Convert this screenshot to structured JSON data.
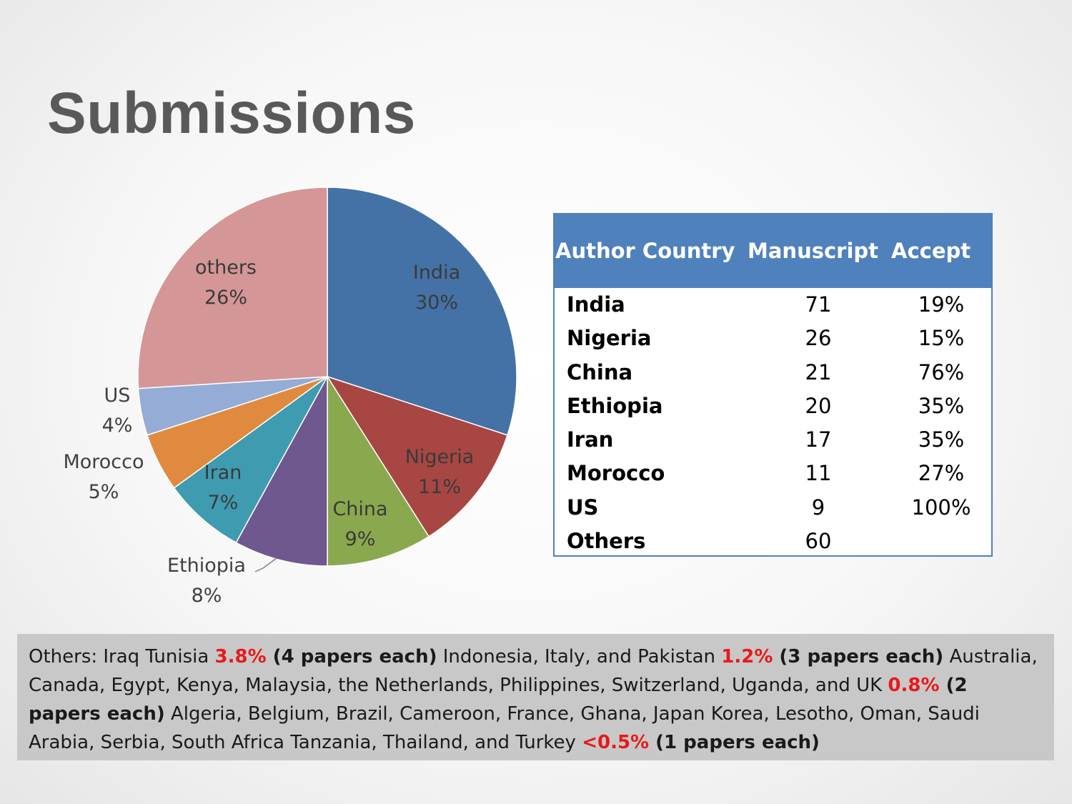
{
  "slide": {
    "title": "Submissions"
  },
  "chart_data": {
    "type": "pie",
    "slices": [
      {
        "label": "India",
        "percent_label": "30%",
        "value": 30,
        "color": "#4472a6"
      },
      {
        "label": "Nigeria",
        "percent_label": "11%",
        "value": 11,
        "color": "#a84643"
      },
      {
        "label": "China",
        "percent_label": "9%",
        "value": 9,
        "color": "#8aa84e"
      },
      {
        "label": "Ethiopia",
        "percent_label": "8%",
        "value": 8,
        "color": "#6f578f"
      },
      {
        "label": "Iran",
        "percent_label": "7%",
        "value": 7,
        "color": "#3f9bb0"
      },
      {
        "label": "Morocco",
        "percent_label": "5%",
        "value": 5,
        "color": "#df8a3f"
      },
      {
        "label": "US",
        "percent_label": "4%",
        "value": 4,
        "color": "#94acd6"
      },
      {
        "label": "others",
        "percent_label": "26%",
        "value": 26,
        "color": "#d49696"
      }
    ]
  },
  "table": {
    "headers": {
      "country": "Author Country",
      "manuscript": "Manuscript",
      "accept": "Accept"
    },
    "rows": [
      {
        "country": "India",
        "manuscript": "71",
        "accept": "19%"
      },
      {
        "country": "Nigeria",
        "manuscript": "26",
        "accept": "15%"
      },
      {
        "country": "China",
        "manuscript": "21",
        "accept": "76%"
      },
      {
        "country": "Ethiopia",
        "manuscript": "20",
        "accept": "35%"
      },
      {
        "country": "Iran",
        "manuscript": "17",
        "accept": "35%"
      },
      {
        "country": "Morocco",
        "manuscript": "11",
        "accept": "27%"
      },
      {
        "country": "US",
        "manuscript": "9",
        "accept": "100%"
      },
      {
        "country": "Others",
        "manuscript": "60",
        "accept": ""
      }
    ]
  },
  "others_note": {
    "t1": "Others: Iraq Tunisia ",
    "p1": "3.8%",
    "n1": " (4 papers each)",
    "t2": " Indonesia, Italy, and Pakistan ",
    "p2": "1.2%",
    "n2": " (3 papers each)",
    "t3": " Australia, Canada, Egypt, Kenya, Malaysia, the Netherlands, Philippines, Switzerland, Uganda, and UK  ",
    "p3": "0.8%",
    "n3": " (2 papers each)",
    "t4": " Algeria, Belgium, Brazil, Cameroon, France, Ghana, Japan Korea, Lesotho, Oman, Saudi Arabia, Serbia, South Africa Tanzania, Thailand, and Turkey ",
    "p4": "<0.5%",
    "n4": " (1 papers each)"
  }
}
